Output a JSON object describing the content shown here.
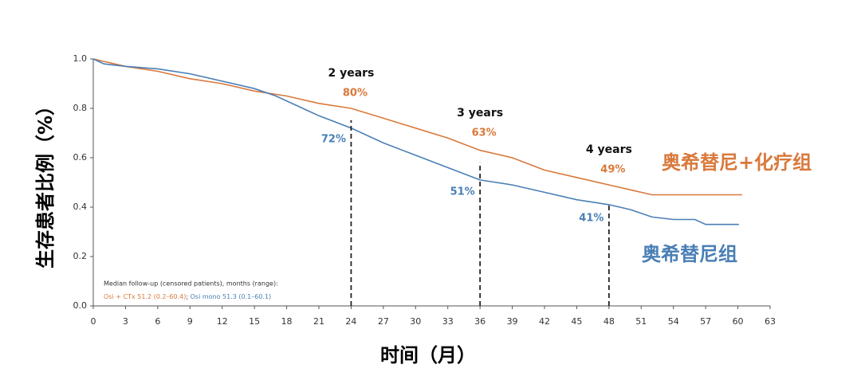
{
  "chart_data": {
    "type": "line",
    "x_label": "时间（月）",
    "y_label": "生存患者比例（%）",
    "xlim": [
      0,
      63
    ],
    "xticks": [
      0,
      3,
      6,
      9,
      12,
      15,
      18,
      21,
      24,
      27,
      30,
      33,
      36,
      39,
      42,
      45,
      48,
      51,
      54,
      57,
      60,
      63
    ],
    "ylim": [
      0,
      1
    ],
    "yticks": [
      {
        "value": 0,
        "label": "0.0"
      },
      0.2,
      0.4,
      0.6,
      0.8,
      {
        "value": 1,
        "label": "1.0"
      }
    ],
    "series": [
      {
        "name": "奥希替尼+化疗组",
        "color": "#d9793c",
        "x": [
          0,
          1,
          3,
          6,
          9,
          12,
          15,
          18,
          21,
          24,
          27,
          30,
          33,
          36,
          39,
          42,
          45,
          48,
          50,
          52,
          54,
          57,
          60.4
        ],
        "values": [
          1.0,
          0.99,
          0.97,
          0.95,
          0.92,
          0.9,
          0.87,
          0.85,
          0.82,
          0.8,
          0.76,
          0.72,
          0.68,
          0.63,
          0.6,
          0.55,
          0.52,
          0.49,
          0.47,
          0.45,
          0.45,
          0.45,
          0.45
        ]
      },
      {
        "name": "奥希替尼组",
        "color": "#4a7fb5",
        "x": [
          0,
          1,
          3,
          6,
          9,
          12,
          15,
          17,
          19,
          21,
          24,
          27,
          30,
          33,
          36,
          39,
          42,
          45,
          48,
          50,
          52,
          54,
          56,
          57,
          60.1
        ],
        "values": [
          1.0,
          0.98,
          0.97,
          0.96,
          0.94,
          0.91,
          0.88,
          0.85,
          0.81,
          0.77,
          0.72,
          0.66,
          0.61,
          0.56,
          0.51,
          0.49,
          0.46,
          0.43,
          0.41,
          0.39,
          0.36,
          0.35,
          0.35,
          0.33,
          0.33
        ]
      }
    ],
    "annotations": [
      {
        "x": 24,
        "label": "2 years",
        "labels": [
          "80%",
          "72%"
        ]
      },
      {
        "x": 36,
        "label": "3 years",
        "labels": [
          "63%",
          "51%"
        ]
      },
      {
        "x": 48,
        "label": "4 years",
        "labels": [
          "49%",
          "41%"
        ]
      }
    ],
    "footnote": {
      "title": "Median follow-up (censored patients), months (range):",
      "parts": [
        "Osi + CTx 51.2 (0.2–60.4)",
        "; ",
        "Osi mono 51.3 (0.1–60.1)"
      ]
    }
  }
}
